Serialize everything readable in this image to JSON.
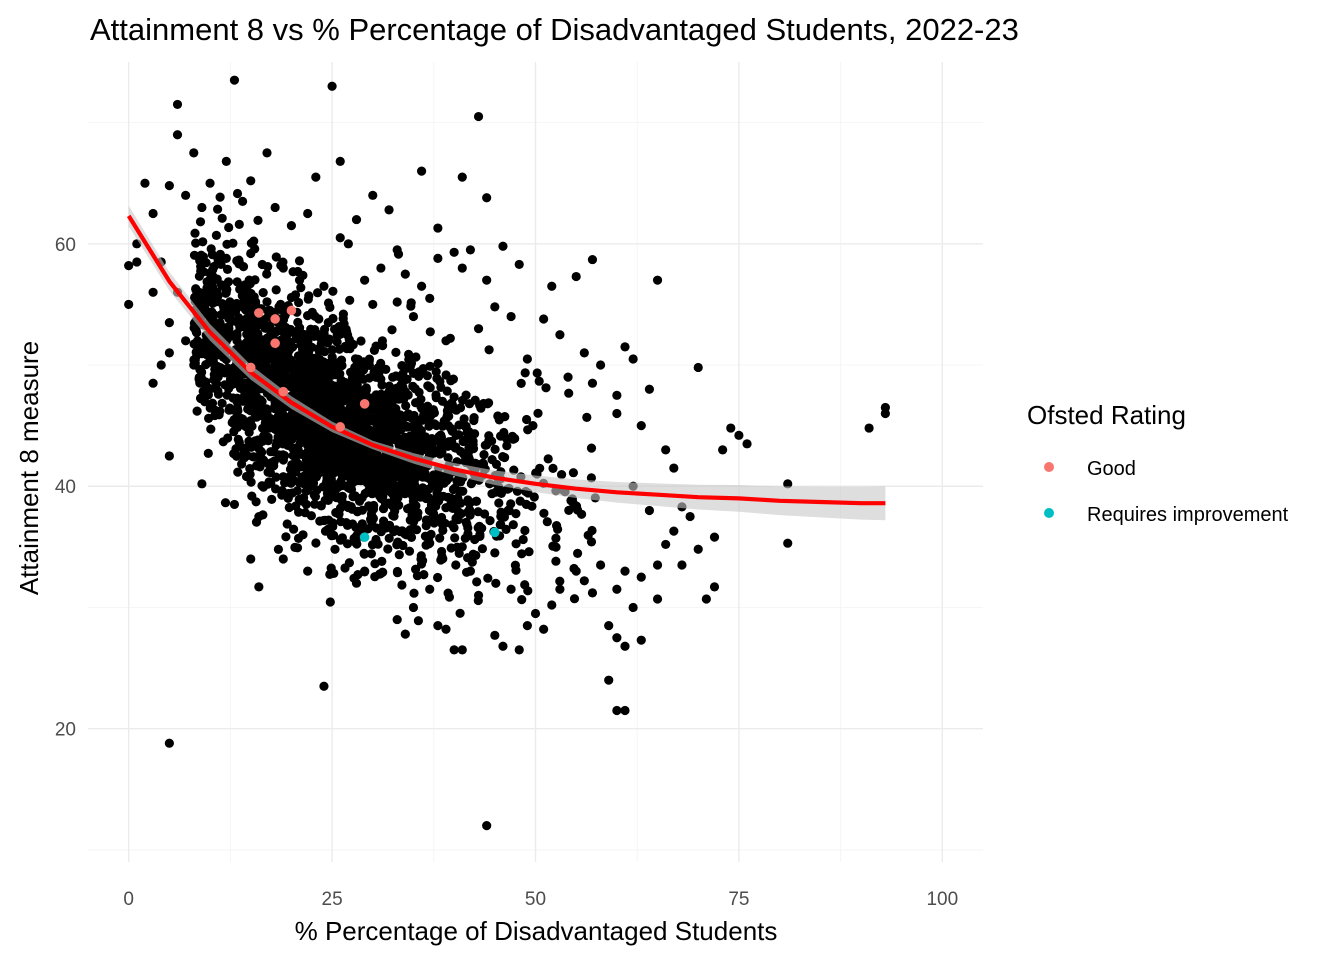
{
  "chart_data": {
    "type": "scatter",
    "title": "Attainment 8 vs % Percentage of Disadvantaged Students, 2022-23",
    "xlabel": "% Percentage of Disadvantaged Students",
    "ylabel": "Attainment 8 measure",
    "xlim": [
      -5,
      105
    ],
    "ylim": [
      9,
      75
    ],
    "x_ticks": [
      0,
      25,
      50,
      75,
      100
    ],
    "y_ticks": [
      20,
      40,
      60
    ],
    "grid": true,
    "legend": {
      "title": "Ofsted Rating",
      "position": "right",
      "entries": [
        {
          "label": "Good",
          "color": "#F8766D"
        },
        {
          "label": "Requires improvement",
          "color": "#00BFC4"
        }
      ]
    },
    "series": [
      {
        "color": "#000000",
        "points": [
          [
            13,
            73.5
          ],
          [
            25,
            73
          ],
          [
            6,
            71.5
          ],
          [
            43,
            70.5
          ],
          [
            6,
            69
          ],
          [
            8,
            67.5
          ],
          [
            17,
            67.5
          ],
          [
            12,
            66.8
          ],
          [
            26,
            66.8
          ],
          [
            2,
            65
          ],
          [
            5,
            64.8
          ],
          [
            10,
            65
          ],
          [
            15,
            65.2
          ],
          [
            23,
            65.5
          ],
          [
            36,
            66
          ],
          [
            41,
            65.5
          ],
          [
            7,
            64
          ],
          [
            14,
            63.5
          ],
          [
            30,
            64
          ],
          [
            44,
            63.8
          ],
          [
            3,
            62.5
          ],
          [
            9,
            63
          ],
          [
            18,
            63
          ],
          [
            22,
            62.5
          ],
          [
            28,
            62
          ],
          [
            32,
            62.8
          ],
          [
            20,
            61.5
          ],
          [
            38,
            61.3
          ],
          [
            26,
            60.5
          ],
          [
            27,
            60
          ],
          [
            46,
            59.8
          ],
          [
            33,
            59.5
          ],
          [
            40,
            59.3
          ],
          [
            42,
            59.5
          ],
          [
            38,
            58.8
          ],
          [
            48,
            58.3
          ],
          [
            57,
            58.7
          ],
          [
            1,
            60
          ],
          [
            1,
            58.5
          ],
          [
            0,
            58.2
          ],
          [
            4,
            58.5
          ],
          [
            3,
            56
          ],
          [
            6,
            56
          ],
          [
            12,
            58.8
          ],
          [
            15,
            59.2
          ],
          [
            19,
            58
          ],
          [
            21,
            57
          ],
          [
            24,
            56.5
          ],
          [
            29,
            57
          ],
          [
            31,
            58
          ],
          [
            34,
            57.5
          ],
          [
            36,
            56.5
          ],
          [
            41,
            58
          ],
          [
            44,
            57
          ],
          [
            52,
            56.5
          ],
          [
            55,
            57.3
          ],
          [
            65,
            57
          ],
          [
            0,
            55
          ],
          [
            5,
            53.5
          ],
          [
            7,
            52
          ],
          [
            30,
            55
          ],
          [
            33,
            55.2
          ],
          [
            35,
            54
          ],
          [
            37,
            55.5
          ],
          [
            45,
            54.8
          ],
          [
            47,
            54
          ],
          [
            51,
            53.8
          ],
          [
            53,
            52.5
          ],
          [
            8,
            50
          ],
          [
            4,
            50
          ],
          [
            3,
            48.5
          ],
          [
            5,
            51
          ],
          [
            39,
            52
          ],
          [
            43,
            53
          ],
          [
            49,
            50.5
          ],
          [
            56,
            51
          ],
          [
            58,
            50
          ],
          [
            62,
            50.5
          ],
          [
            61,
            51.5
          ],
          [
            70,
            49.8
          ],
          [
            54,
            49
          ],
          [
            57,
            48.5
          ],
          [
            60,
            47.5
          ],
          [
            64,
            48
          ],
          [
            5,
            42.5
          ],
          [
            9,
            40.2
          ],
          [
            13,
            38.5
          ],
          [
            74,
            44.8
          ],
          [
            75,
            44.2
          ],
          [
            73,
            43
          ],
          [
            76,
            43.5
          ],
          [
            81,
            40.2
          ],
          [
            91,
            44.8
          ],
          [
            93,
            46.5
          ],
          [
            93,
            46
          ],
          [
            60,
            46
          ],
          [
            63,
            45
          ],
          [
            66,
            43
          ],
          [
            67,
            41.5
          ],
          [
            62,
            40
          ],
          [
            68,
            38.3
          ],
          [
            69,
            37.5
          ],
          [
            64,
            38
          ],
          [
            67,
            36.3
          ],
          [
            72,
            35.8
          ],
          [
            81,
            35.3
          ],
          [
            70,
            34.8
          ],
          [
            66,
            35.2
          ],
          [
            65,
            33.5
          ],
          [
            68,
            33.5
          ],
          [
            63,
            32.5
          ],
          [
            61,
            33
          ],
          [
            60,
            31.5
          ],
          [
            71,
            30.7
          ],
          [
            72,
            31.7
          ],
          [
            65,
            30.7
          ],
          [
            62,
            30
          ],
          [
            59,
            28.5
          ],
          [
            60,
            27.5
          ],
          [
            61,
            26.8
          ],
          [
            63,
            27.3
          ],
          [
            59,
            24
          ],
          [
            60,
            21.5
          ],
          [
            61,
            21.5
          ],
          [
            24,
            23.5
          ],
          [
            5,
            18.8
          ],
          [
            44,
            12
          ],
          [
            16,
            31.7
          ],
          [
            15,
            34
          ],
          [
            19,
            34
          ],
          [
            22,
            33
          ],
          [
            28,
            32
          ],
          [
            29,
            33
          ],
          [
            31,
            32.8
          ],
          [
            33,
            29
          ],
          [
            34,
            27.8
          ],
          [
            35,
            30
          ],
          [
            38,
            28.5
          ],
          [
            39,
            28.2
          ],
          [
            40,
            26.5
          ],
          [
            41,
            26.5
          ],
          [
            45,
            27.7
          ],
          [
            46,
            26.8
          ],
          [
            48,
            26.5
          ],
          [
            49,
            28.5
          ],
          [
            50,
            29.5
          ],
          [
            51,
            28.2
          ],
          [
            52,
            30.2
          ],
          [
            53,
            31.5
          ],
          [
            55,
            33
          ],
          [
            56,
            32.2
          ],
          [
            57,
            31.2
          ],
          [
            58,
            33.5
          ],
          [
            47,
            31.5
          ],
          [
            43,
            31
          ],
          [
            42,
            33
          ],
          [
            37,
            31.5
          ],
          [
            45,
            34.5
          ],
          [
            41,
            35
          ]
        ],
        "cluster": {
          "description": "dense point cloud",
          "count": 2600,
          "x_range": [
            8,
            58
          ],
          "trend": "centre follows fitted curve, spread about 4 to 5 units"
        }
      },
      {
        "name": "Good",
        "color": "#F8766D",
        "points": [
          [
            16,
            54.3
          ],
          [
            18,
            53.8
          ],
          [
            20,
            54.5
          ],
          [
            18,
            51.8
          ],
          [
            19,
            47.8
          ],
          [
            15,
            49.8
          ],
          [
            29,
            46.8
          ],
          [
            26,
            44.9
          ]
        ]
      },
      {
        "name": "Requires improvement",
        "color": "#00BFC4",
        "points": [
          [
            29,
            35.8
          ],
          [
            45,
            36.2
          ]
        ]
      }
    ],
    "fit_line": {
      "color": "#FF0000",
      "points": [
        [
          0,
          62.3
        ],
        [
          5,
          56.9
        ],
        [
          10,
          52.7
        ],
        [
          15,
          49.4
        ],
        [
          20,
          46.9
        ],
        [
          25,
          44.9
        ],
        [
          30,
          43.4
        ],
        [
          35,
          42.3
        ],
        [
          40,
          41.4
        ],
        [
          45,
          40.7
        ],
        [
          50,
          40.2
        ],
        [
          55,
          39.8
        ],
        [
          60,
          39.5
        ],
        [
          65,
          39.3
        ],
        [
          70,
          39.1
        ],
        [
          75,
          39.0
        ],
        [
          80,
          38.8
        ],
        [
          85,
          38.7
        ],
        [
          90,
          38.6
        ],
        [
          93,
          38.6
        ]
      ]
    }
  }
}
